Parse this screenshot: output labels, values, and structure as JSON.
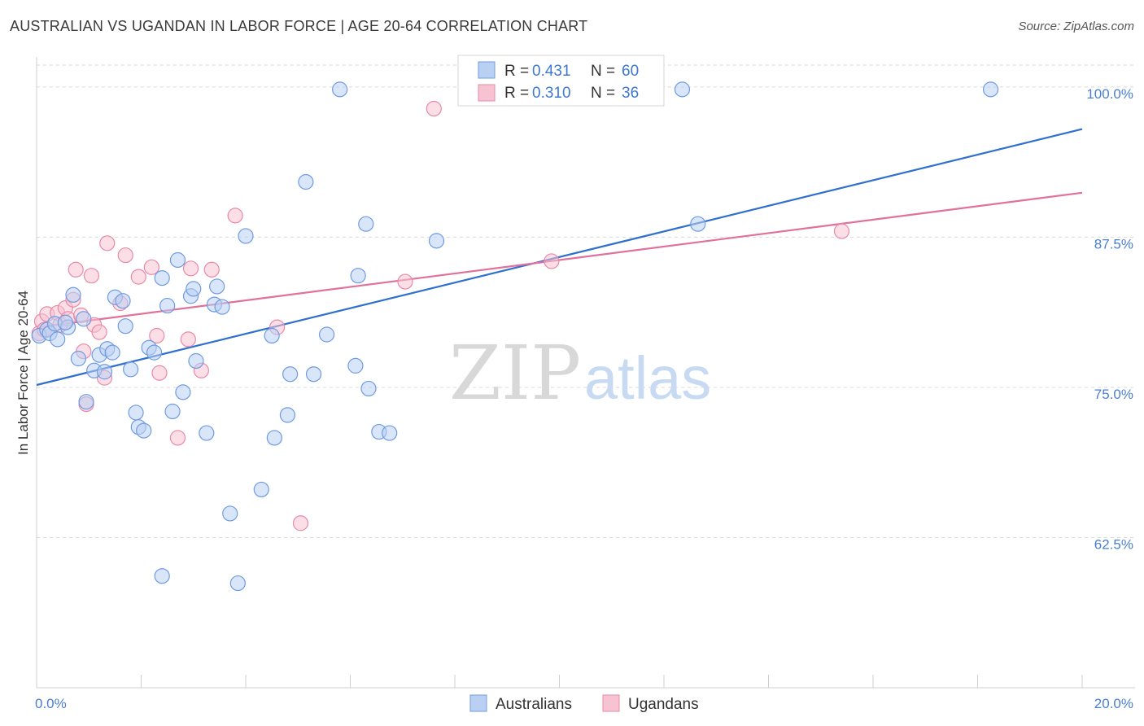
{
  "title": "AUSTRALIAN VS UGANDAN IN LABOR FORCE | AGE 20-64 CORRELATION CHART",
  "source": "Source: ZipAtlas.com",
  "watermark": {
    "zip": "ZIP",
    "atlas": "atlas"
  },
  "colors": {
    "blue_fill": "#b9d0f2",
    "blue_stroke": "#6f9be0",
    "blue_line": "#2f6fce",
    "pink_fill": "#f7c2d2",
    "pink_stroke": "#e88aa8",
    "pink_line": "#e0719a",
    "grid": "#d9d9d9",
    "axis_text": "#4a7fcf"
  },
  "legend": {
    "rows": [
      {
        "r_label": "R =",
        "r_value": "0.431",
        "n_label": "N =",
        "n_value": "60"
      },
      {
        "r_label": "R =",
        "r_value": "0.310",
        "n_label": "N =",
        "n_value": "36"
      }
    ]
  },
  "chart_data": {
    "type": "scatter",
    "title": "AUSTRALIAN VS UGANDAN IN LABOR FORCE | AGE 20-64 CORRELATION CHART",
    "xlabel": "",
    "ylabel": "In Labor Force | Age 20-64",
    "xlim": [
      0,
      20
    ],
    "ylim": [
      50,
      102.5
    ],
    "x_tick_labels": [
      "0.0%",
      "20.0%"
    ],
    "y_ticks": [
      62.5,
      75.0,
      87.5,
      100.0
    ],
    "y_tick_labels": [
      "62.5%",
      "75.0%",
      "87.5%",
      "100.0%"
    ],
    "grid": true,
    "legend_position": "top-center",
    "series": [
      {
        "name": "Australians",
        "r": 0.431,
        "n": 60,
        "trend": [
          [
            0,
            75.2
          ],
          [
            20,
            96.5
          ]
        ],
        "points": [
          [
            0.05,
            79.3
          ],
          [
            0.2,
            79.8
          ],
          [
            0.25,
            79.5
          ],
          [
            0.35,
            80.3
          ],
          [
            0.4,
            79.0
          ],
          [
            0.6,
            80.0
          ],
          [
            0.55,
            80.4
          ],
          [
            0.7,
            82.7
          ],
          [
            0.8,
            77.4
          ],
          [
            0.9,
            80.7
          ],
          [
            0.95,
            73.8
          ],
          [
            1.1,
            76.4
          ],
          [
            1.2,
            77.7
          ],
          [
            1.3,
            76.3
          ],
          [
            1.35,
            78.2
          ],
          [
            1.45,
            77.9
          ],
          [
            1.5,
            82.5
          ],
          [
            1.65,
            82.2
          ],
          [
            1.7,
            80.1
          ],
          [
            1.8,
            76.5
          ],
          [
            1.9,
            72.9
          ],
          [
            1.95,
            71.7
          ],
          [
            2.05,
            71.4
          ],
          [
            2.15,
            78.3
          ],
          [
            2.25,
            77.9
          ],
          [
            2.4,
            84.1
          ],
          [
            2.5,
            81.8
          ],
          [
            2.6,
            73.0
          ],
          [
            2.7,
            85.6
          ],
          [
            2.8,
            74.6
          ],
          [
            2.95,
            82.6
          ],
          [
            3.0,
            83.2
          ],
          [
            3.05,
            77.2
          ],
          [
            3.25,
            71.2
          ],
          [
            3.4,
            81.9
          ],
          [
            3.45,
            83.4
          ],
          [
            3.55,
            81.7
          ],
          [
            3.7,
            64.5
          ],
          [
            3.85,
            58.7
          ],
          [
            4.0,
            87.6
          ],
          [
            4.3,
            66.5
          ],
          [
            4.5,
            79.3
          ],
          [
            4.55,
            70.8
          ],
          [
            4.8,
            72.7
          ],
          [
            4.85,
            76.1
          ],
          [
            5.15,
            92.1
          ],
          [
            5.3,
            76.1
          ],
          [
            5.55,
            79.4
          ],
          [
            5.8,
            99.8
          ],
          [
            6.1,
            76.8
          ],
          [
            6.15,
            84.3
          ],
          [
            6.3,
            88.6
          ],
          [
            6.35,
            74.9
          ],
          [
            6.55,
            71.3
          ],
          [
            6.75,
            71.2
          ],
          [
            7.65,
            87.2
          ],
          [
            12.35,
            99.8
          ],
          [
            12.65,
            88.6
          ],
          [
            18.25,
            99.8
          ],
          [
            2.4,
            59.3
          ]
        ]
      },
      {
        "name": "Ugandans",
        "r": 0.31,
        "n": 36,
        "trend": [
          [
            0,
            80.0
          ],
          [
            20,
            91.2
          ]
        ],
        "points": [
          [
            0.05,
            79.5
          ],
          [
            0.1,
            80.5
          ],
          [
            0.2,
            81.1
          ],
          [
            0.4,
            81.2
          ],
          [
            0.45,
            80.2
          ],
          [
            0.55,
            81.6
          ],
          [
            0.6,
            80.7
          ],
          [
            0.7,
            82.3
          ],
          [
            0.75,
            84.8
          ],
          [
            0.85,
            81.0
          ],
          [
            0.9,
            78.0
          ],
          [
            0.95,
            73.6
          ],
          [
            1.05,
            84.3
          ],
          [
            1.1,
            80.2
          ],
          [
            1.2,
            79.6
          ],
          [
            1.3,
            75.8
          ],
          [
            1.35,
            87.0
          ],
          [
            1.6,
            82.0
          ],
          [
            1.7,
            86.0
          ],
          [
            1.95,
            84.2
          ],
          [
            2.2,
            85.0
          ],
          [
            2.3,
            79.3
          ],
          [
            2.35,
            76.2
          ],
          [
            2.7,
            70.8
          ],
          [
            2.9,
            79.0
          ],
          [
            2.95,
            84.9
          ],
          [
            3.15,
            76.4
          ],
          [
            3.35,
            84.8
          ],
          [
            3.8,
            89.3
          ],
          [
            4.6,
            80.0
          ],
          [
            5.05,
            63.7
          ],
          [
            7.05,
            83.8
          ],
          [
            7.6,
            98.2
          ],
          [
            9.85,
            85.5
          ],
          [
            15.4,
            88.0
          ],
          [
            0.15,
            79.8
          ]
        ]
      }
    ]
  },
  "bottom_legend": [
    {
      "label": "Australians"
    },
    {
      "label": "Ugandans"
    }
  ]
}
